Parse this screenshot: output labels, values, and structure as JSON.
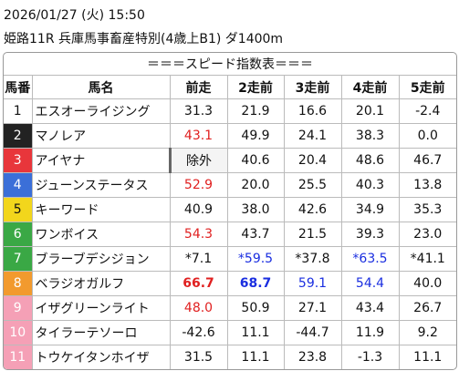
{
  "header": {
    "datetime": "2026/01/27 (火) 15:50",
    "race": "姫路11R 兵庫馬事畜産特別(4歳上B1) ダ1400m"
  },
  "table": {
    "title": "＝＝＝スピード指数表＝＝＝",
    "columns": [
      "馬番",
      "馬名",
      "前走",
      "2走前",
      "3走前",
      "4走前",
      "5走前"
    ],
    "rows": [
      [
        "1",
        "エスオーライジング",
        "31.3",
        "21.9",
        "16.6",
        "20.1",
        "-2.4"
      ],
      [
        "2",
        "マノレア",
        "43.1",
        "49.9",
        "24.1",
        "38.3",
        "0.0"
      ],
      [
        "3",
        "アイヤナ",
        "除外",
        "40.6",
        "20.4",
        "48.6",
        "46.7"
      ],
      [
        "4",
        "ジューンステータス",
        "52.9",
        "20.0",
        "25.5",
        "40.3",
        "13.8"
      ],
      [
        "5",
        "キーワード",
        "40.9",
        "38.0",
        "42.6",
        "34.9",
        "35.3"
      ],
      [
        "6",
        "ワンボイス",
        "54.3",
        "43.7",
        "21.5",
        "39.3",
        "23.0"
      ],
      [
        "7",
        "ブラーブデシジョン",
        "*7.1",
        "*59.5",
        "*37.8",
        "*63.5",
        "*41.1"
      ],
      [
        "8",
        "ベラジオガルフ",
        "66.7",
        "68.7",
        "59.1",
        "54.4",
        "40.0"
      ],
      [
        "9",
        "イザグリーンライト",
        "48.0",
        "50.9",
        "27.1",
        "43.4",
        "26.7"
      ],
      [
        "10",
        "タイラーテソーロ",
        "-42.6",
        "11.1",
        "-44.7",
        "11.9",
        "9.2"
      ],
      [
        "11",
        "トウケイタンホイザ",
        "31.5",
        "11.1",
        "23.8",
        "-1.3",
        "11.1"
      ]
    ]
  }
}
